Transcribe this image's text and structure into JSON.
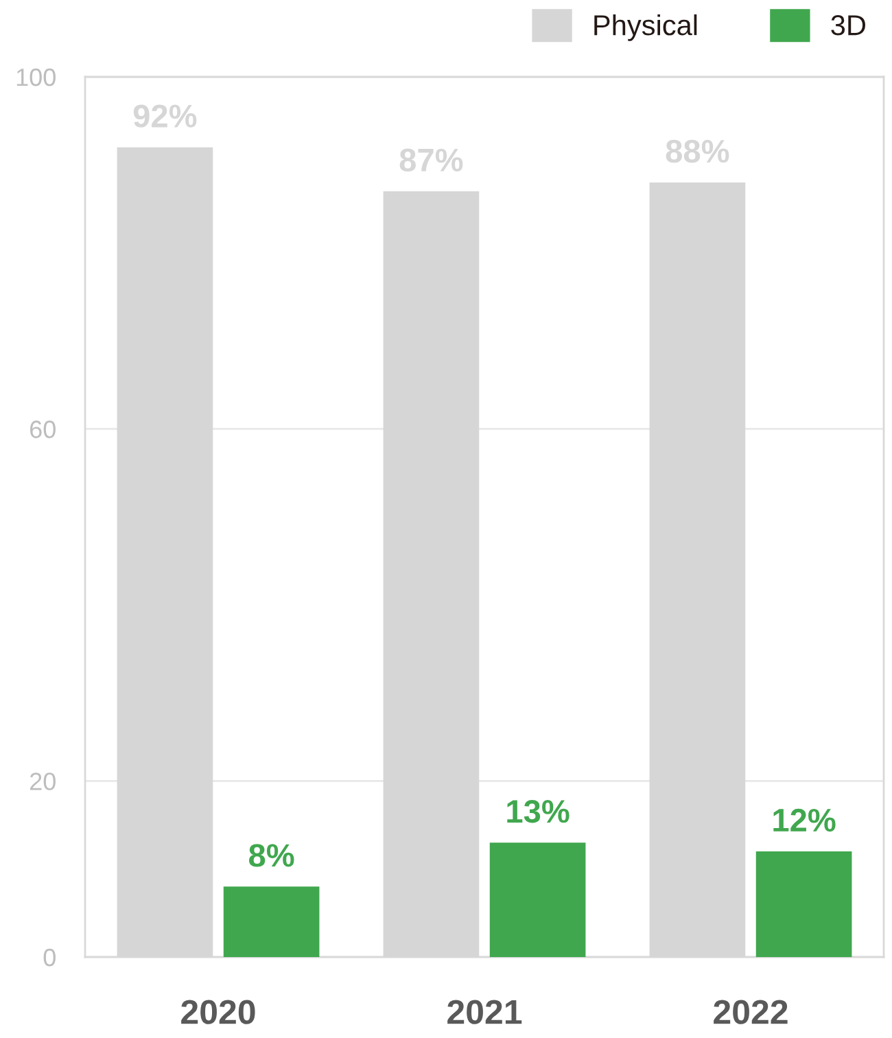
{
  "chart_data": {
    "type": "bar",
    "categories": [
      "2020",
      "2021",
      "2022"
    ],
    "series": [
      {
        "name": "Physical",
        "color": "#d5d6d5",
        "values": [
          92,
          87,
          88
        ],
        "value_labels": [
          "92%",
          "87%",
          "88%"
        ]
      },
      {
        "name": "3D",
        "color": "#40a74e",
        "values": [
          8,
          13,
          12
        ],
        "value_labels": [
          "8%",
          "13%",
          "12%"
        ]
      }
    ],
    "ylim": [
      0,
      100
    ],
    "yticks": [
      0,
      20,
      60,
      100
    ],
    "grid": "y",
    "legend": "top right"
  }
}
